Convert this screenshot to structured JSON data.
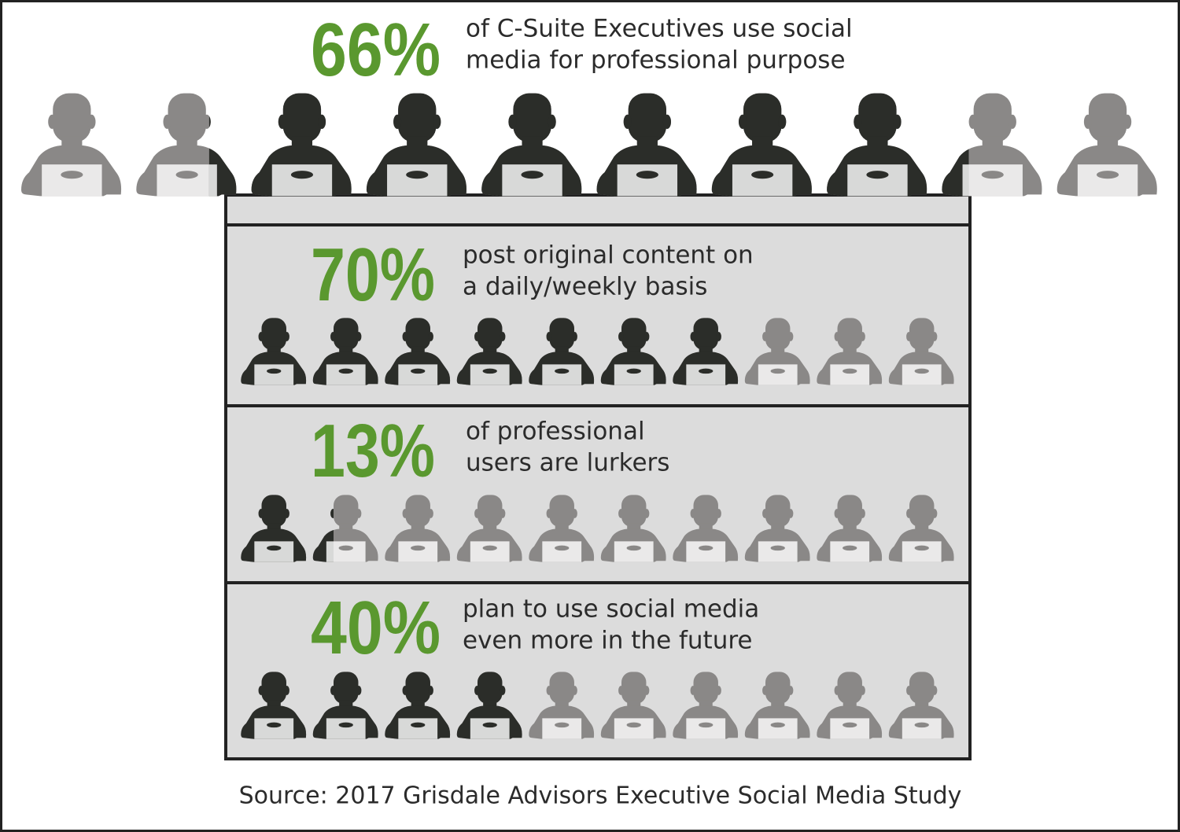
{
  "chart_data": [
    {
      "type": "pictograph",
      "values": [
        66
      ],
      "value_labels": [
        "66%"
      ],
      "xlim": [
        0,
        100
      ],
      "caption": [
        "of C-Suite Executives use social",
        "media for professional purpose"
      ],
      "color": "#2b2d29",
      "base_color": "#8a8887",
      "label_color": "#5a982f"
    },
    {
      "type": "pictograph",
      "values": [
        70
      ],
      "value_labels": [
        "70%"
      ],
      "xlim": [
        0,
        100
      ],
      "caption": [
        "post original content on",
        "a daily/weekly basis"
      ],
      "color": "#2b2d29",
      "base_color": "#8a8887",
      "label_color": "#5a982f"
    },
    {
      "type": "pictograph",
      "values": [
        13
      ],
      "value_labels": [
        "13%"
      ],
      "xlim": [
        0,
        100
      ],
      "caption": [
        "of professional",
        "users are lurkers"
      ],
      "color": "#2b2d29",
      "base_color": "#8a8887",
      "label_color": "#5a982f"
    },
    {
      "type": "pictograph",
      "values": [
        40
      ],
      "value_labels": [
        "40%"
      ],
      "xlim": [
        0,
        100
      ],
      "caption": [
        "plan to use social media",
        "even more in the future"
      ],
      "color": "#2b2d29",
      "base_color": "#8a8887",
      "label_color": "#5a982f"
    }
  ],
  "source": "Source: 2017 Grisdale Advisors Executive Social Media Study"
}
